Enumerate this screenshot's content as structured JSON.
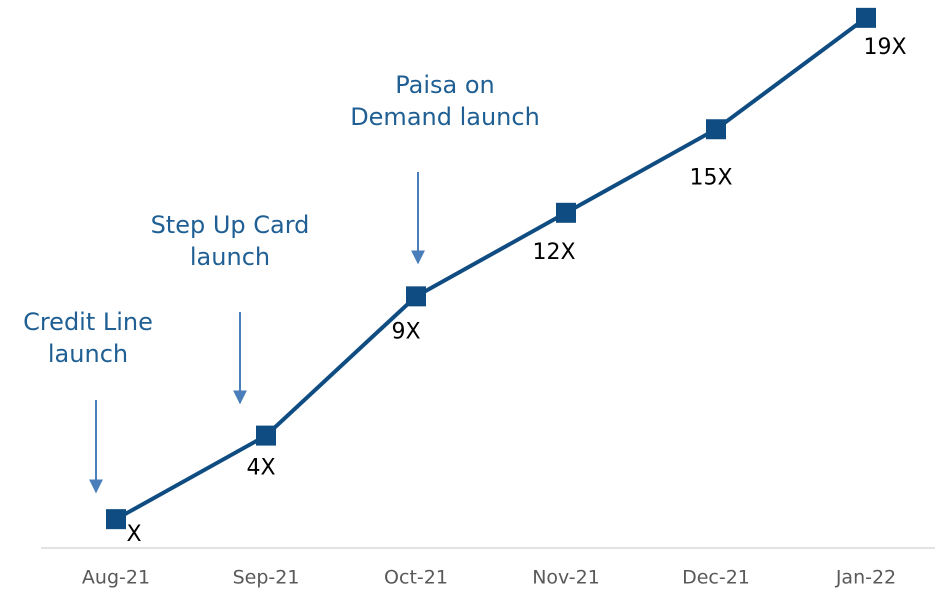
{
  "chart_data": {
    "type": "line",
    "categories": [
      "Aug-21",
      "Sep-21",
      "Oct-21",
      "Nov-21",
      "Dec-21",
      "Jan-22"
    ],
    "series": [
      {
        "color": "#0f4c81",
        "values": [
          1,
          4,
          9,
          12,
          15,
          19
        ],
        "value_labels": [
          "X",
          "4X",
          "9X",
          "12X",
          "15X",
          "19X"
        ]
      }
    ],
    "ylim": [
      0,
      20
    ],
    "annotations": [
      {
        "lines": [
          "Credit Line",
          "launch"
        ]
      },
      {
        "lines": [
          "Step Up Card",
          "launch"
        ]
      },
      {
        "lines": [
          "Paisa on",
          "Demand launch"
        ]
      }
    ]
  }
}
